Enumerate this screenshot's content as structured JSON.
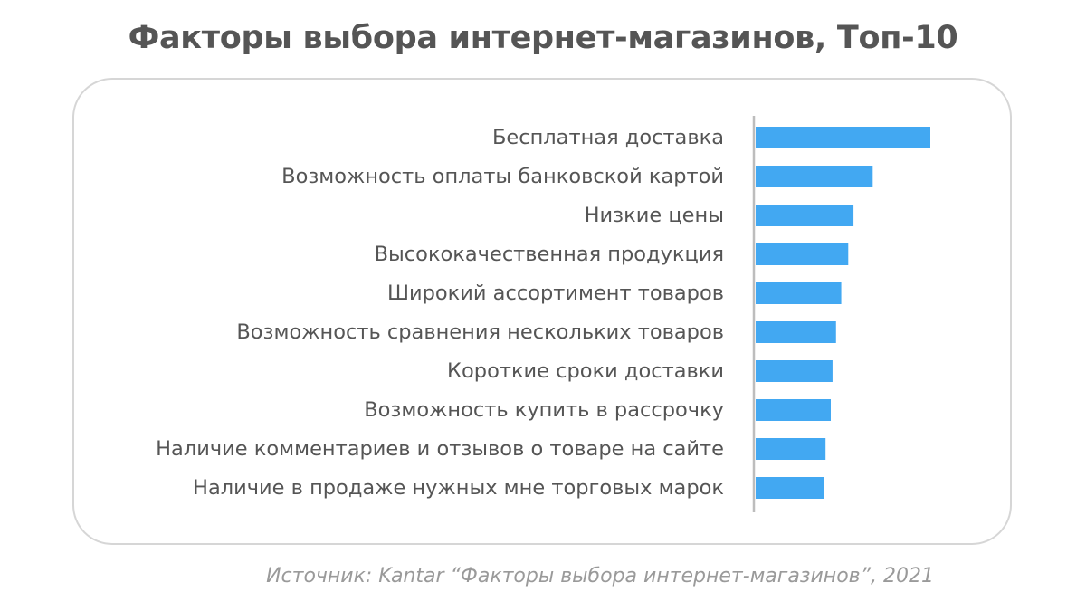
{
  "chart_data": {
    "type": "bar",
    "orientation": "horizontal",
    "title": "Факторы выбора интернет-магазинов, Топ-10",
    "categories": [
      "Бесплатная доставка",
      "Возможность оплаты банковской картой",
      "Низкие цены",
      "Высококачественная продукция",
      "Широкий ассортимент товаров",
      "Возможность сравнения нескольких товаров",
      "Короткие сроки доставки",
      "Возможность купить в рассрочку",
      "Наличие комментариев и отзывов о товаре на сайте",
      "Наличие в продаже нужных мне торговых марок"
    ],
    "values": [
      100,
      67,
      56,
      53,
      49,
      46,
      44,
      43,
      40,
      39
    ],
    "xlabel": "",
    "ylabel": "",
    "xlim": [
      0,
      100
    ],
    "grid": false,
    "bar_color": "#42a8f2"
  },
  "source": "Источник: Kantar “Факторы выбора интернет-магазинов”, 2021"
}
